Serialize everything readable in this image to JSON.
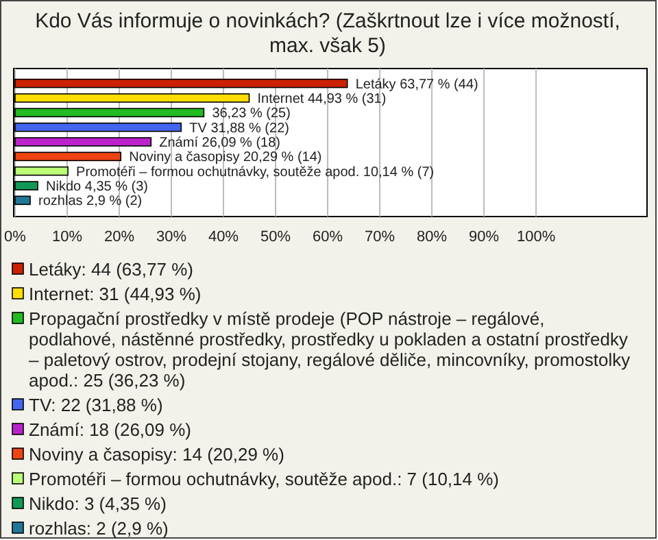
{
  "chart_data": {
    "type": "bar",
    "orientation": "horizontal",
    "title": "Kdo Vás informuje o novinkách? (Zaškrtnout lze i více možností, max. však 5)",
    "categories": [
      null
    ],
    "series": [
      {
        "name": "Letáky: 44 (63,77 %)",
        "color": "#cc2200",
        "values": [
          63.77
        ],
        "value_labels": [
          "Letáky 63,77 % (44)"
        ]
      },
      {
        "name": "Internet: 31 (44,93 %)",
        "color": "#ffdd00",
        "values": [
          44.93
        ],
        "value_labels": [
          "Internet 44,93 % (31)"
        ]
      },
      {
        "name": "Propagační prostředky v místě prodeje (POP nástroje – regálové, podlahové, nástěnné prostředky, prostředky u pokladen a ostatní prostředky – paletový ostrov, prodejní stojany, regálové děliče, mincovníky, promostolky apod.: 25 (36,23 %)",
        "color": "#22bb22",
        "values": [
          36.23
        ],
        "value_labels": [
          "36,23 % (25)"
        ]
      },
      {
        "name": "TV: 22 (31,88 %)",
        "color": "#4466ee",
        "values": [
          31.88
        ],
        "value_labels": [
          "TV 31,88 % (22)"
        ]
      },
      {
        "name": "Známí: 18 (26,09 %)",
        "color": "#bb22cc",
        "values": [
          26.09
        ],
        "value_labels": [
          "Známí 26,09 % (18)"
        ]
      },
      {
        "name": "Noviny a časopisy: 14 (20,29 %)",
        "color": "#ee4411",
        "values": [
          20.29
        ],
        "value_labels": [
          "Noviny a časopisy 20,29 % (14)"
        ]
      },
      {
        "name": "Promotéři – formou ochutnávky, soutěže apod.: 7 (10,14 %)",
        "color": "#bbff77",
        "values": [
          10.14
        ],
        "value_labels": [
          "Promotéři – formou ochutnávky, soutěže apod. 10,14 % (7)"
        ]
      },
      {
        "name": "Nikdo: 3 (4,35 %)",
        "color": "#119955",
        "values": [
          4.35
        ],
        "value_labels": [
          "Nikdo 4,35 % (3)"
        ]
      },
      {
        "name": "rozhlas: 2 (2,9 %)",
        "color": "#227799",
        "values": [
          2.9
        ],
        "value_labels": [
          "rozhlas 2,9 % (2)"
        ]
      }
    ],
    "xlim": [
      0,
      121.3
    ],
    "xticks": [
      {
        "value": 0,
        "label": "0%"
      },
      {
        "value": 10,
        "label": "10%"
      },
      {
        "value": 20,
        "label": "20%"
      },
      {
        "value": 30,
        "label": "30%"
      },
      {
        "value": 40,
        "label": "40%"
      },
      {
        "value": 50,
        "label": "50%"
      },
      {
        "value": 60,
        "label": "60%"
      },
      {
        "value": 70,
        "label": "70%"
      },
      {
        "value": 80,
        "label": "80%"
      },
      {
        "value": 90,
        "label": "90%"
      },
      {
        "value": 100,
        "label": "100%"
      }
    ],
    "grid": "x",
    "legend": "bottom",
    "tick_labels": "x"
  }
}
